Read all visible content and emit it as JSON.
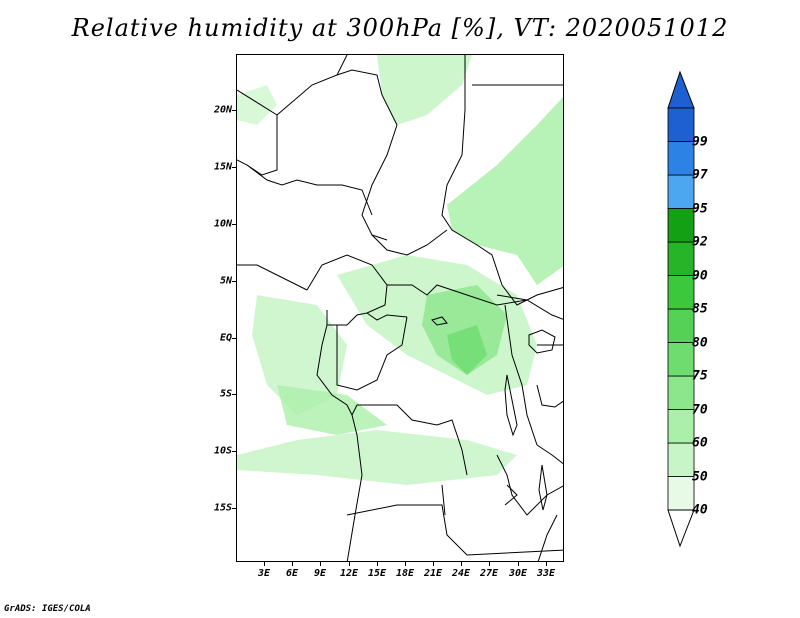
{
  "title": "Relative humidity at 300hPa [%], VT: 2020051012",
  "credit": "GrADS: IGES/COLA",
  "map": {
    "lat_labels": [
      "20N",
      "15N",
      "10N",
      "5N",
      "EQ",
      "5S",
      "10S",
      "15S"
    ],
    "lat_values": [
      20,
      15,
      10,
      5,
      0,
      -5,
      -10,
      -15
    ],
    "lon_labels": [
      "3E",
      "6E",
      "9E",
      "12E",
      "15E",
      "18E",
      "21E",
      "24E",
      "27E",
      "30E",
      "33E"
    ],
    "lon_values": [
      3,
      6,
      9,
      12,
      15,
      18,
      21,
      24,
      27,
      30,
      33
    ],
    "lon_range": [
      0,
      35
    ],
    "lat_range": [
      -20,
      25
    ]
  },
  "colorbar": {
    "levels": [
      "40",
      "50",
      "60",
      "70",
      "75",
      "80",
      "85",
      "90",
      "92",
      "95",
      "97",
      "99"
    ],
    "colors": [
      "#e6fae6",
      "#c8f5c8",
      "#aaf0aa",
      "#8ce68c",
      "#6edc6e",
      "#55d255",
      "#3cc83c",
      "#28b428",
      "#14a014",
      "#4da6f0",
      "#2d82e6",
      "#1e5fd2"
    ],
    "top_arrow_color": "#1e5fd2",
    "bottom_arrow_color": "#ffffff"
  }
}
